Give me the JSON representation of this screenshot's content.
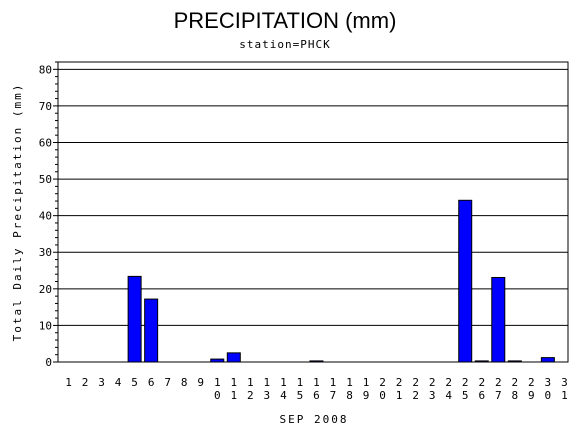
{
  "chart_data": {
    "type": "bar",
    "title": "PRECIPITATION (mm)",
    "subtitle": "station=PHCK",
    "xlabel": "SEP 2008",
    "ylabel": "Total Daily Precipitation (mm)",
    "ylim": [
      0,
      82
    ],
    "yticks": [
      0,
      10,
      20,
      30,
      40,
      50,
      60,
      70,
      80
    ],
    "grid": true,
    "bar_color": "#0000ff",
    "categories": [
      "1",
      "2",
      "3",
      "4",
      "5",
      "6",
      "7",
      "8",
      "9",
      "10",
      "11",
      "12",
      "13",
      "14",
      "15",
      "16",
      "17",
      "18",
      "19",
      "20",
      "21",
      "22",
      "23",
      "24",
      "25",
      "26",
      "27",
      "28",
      "29",
      "30",
      "31"
    ],
    "values": [
      0,
      0,
      0,
      0,
      23.4,
      17.2,
      0,
      0,
      0,
      0.8,
      2.5,
      0,
      0,
      0,
      0,
      0.3,
      0,
      0,
      0,
      0,
      0,
      0,
      0,
      0,
      44.2,
      0.3,
      23.1,
      0.3,
      0,
      1.2,
      0
    ]
  }
}
